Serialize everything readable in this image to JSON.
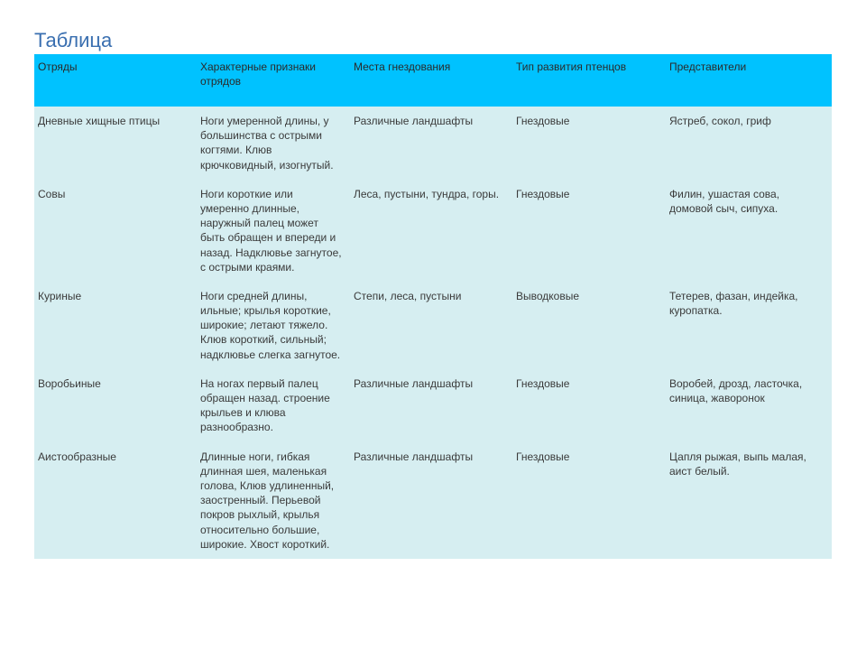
{
  "title": "Таблица",
  "colors": {
    "title_color": "#3a6fb0",
    "header_bg": "#00c2ff",
    "body_bg": "#d6eef1",
    "text_color": "#3a3a3a"
  },
  "table": {
    "columns": [
      "Отряды",
      "Характерные признаки отрядов",
      "Места гнездования",
      "Тип развития птенцов",
      "Представители"
    ],
    "rows": [
      [
        "Дневные хищные птицы",
        "Ноги умеренной длины, у большинства с острыми когтями. Клюв крючковидный, изогнутый.",
        "Различные ландшафты",
        "Гнездовые",
        "Ястреб, сокол, гриф"
      ],
      [
        "Совы",
        "Ноги короткие или умеренно длинные, наружный палец может быть обращен и впереди и назад. Надклювье загнутое, с острыми краями.",
        "Леса, пустыни, тундра, горы.",
        "Гнездовые",
        "Филин, ушастая сова, домовой сыч, сипуха."
      ],
      [
        "Куриные",
        "Ноги средней длины, ильные; крылья короткие, широкие; летают тяжело. Клюв короткий, сильный; надклювье слегка загнутое.",
        "Степи, леса, пустыни",
        "Выводковые",
        "Тетерев, фазан, индейка, куропатка."
      ],
      [
        "Воробьиные",
        "На ногах первый палец обращен назад. строение крыльев и клюва разнообразно.",
        "Различные ландшафты",
        "Гнездовые",
        "Воробей, дрозд, ласточка, синица, жаворонок"
      ],
      [
        "Аистообразные",
        "Длинные ноги, гибкая длинная шея, маленькая голова, Клюв удлиненный, заостренный. Перьевой покров рыхлый, крылья относительно большие, широкие. Хвост короткий.",
        "Различные ландшафты",
        "Гнездовые",
        "Цапля рыжая, выпь малая, аист белый."
      ]
    ]
  }
}
